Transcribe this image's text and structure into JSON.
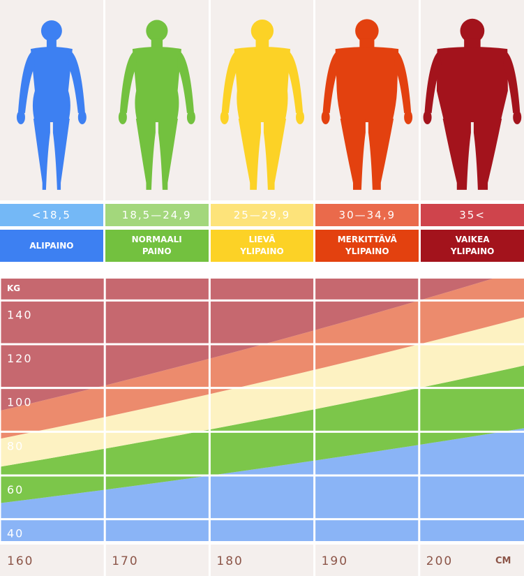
{
  "categories": [
    {
      "range": "<18,5",
      "label": "ALIPAINO",
      "color": "#3d80f2",
      "light": "#74b8f6",
      "band": "#8ab4f6",
      "bmi_lower": null
    },
    {
      "range": "18,5—24,9",
      "label": "NORMAALI PAINO",
      "color": "#73c13f",
      "light": "#a3d77c",
      "band": "#7cc64a",
      "bmi_lower": 18.5
    },
    {
      "range": "25—29,9",
      "label": "LIEVÄ YLIPAINO",
      "color": "#fcd226",
      "light": "#fde37a",
      "band": "#fdf2c2",
      "bmi_lower": 25
    },
    {
      "range": "30—34,9",
      "label": "MERKITTÄVÄ YLIPAINO",
      "color": "#e3410f",
      "light": "#ea6a4b",
      "band": "#ec8b6d",
      "bmi_lower": 30
    },
    {
      "range": "35<",
      "label": "VAIKEA YLIPAINO",
      "color": "#a3131c",
      "light": "#cf444c",
      "band": "#c6686f",
      "bmi_lower": 35
    }
  ],
  "chart": {
    "y_unit": "KG",
    "x_unit": "CM",
    "xlim": [
      160,
      210
    ],
    "ylim": [
      30,
      150
    ],
    "yticks": [
      40,
      60,
      80,
      100,
      120,
      140
    ],
    "xticks": [
      160,
      170,
      180,
      190,
      200
    ]
  }
}
